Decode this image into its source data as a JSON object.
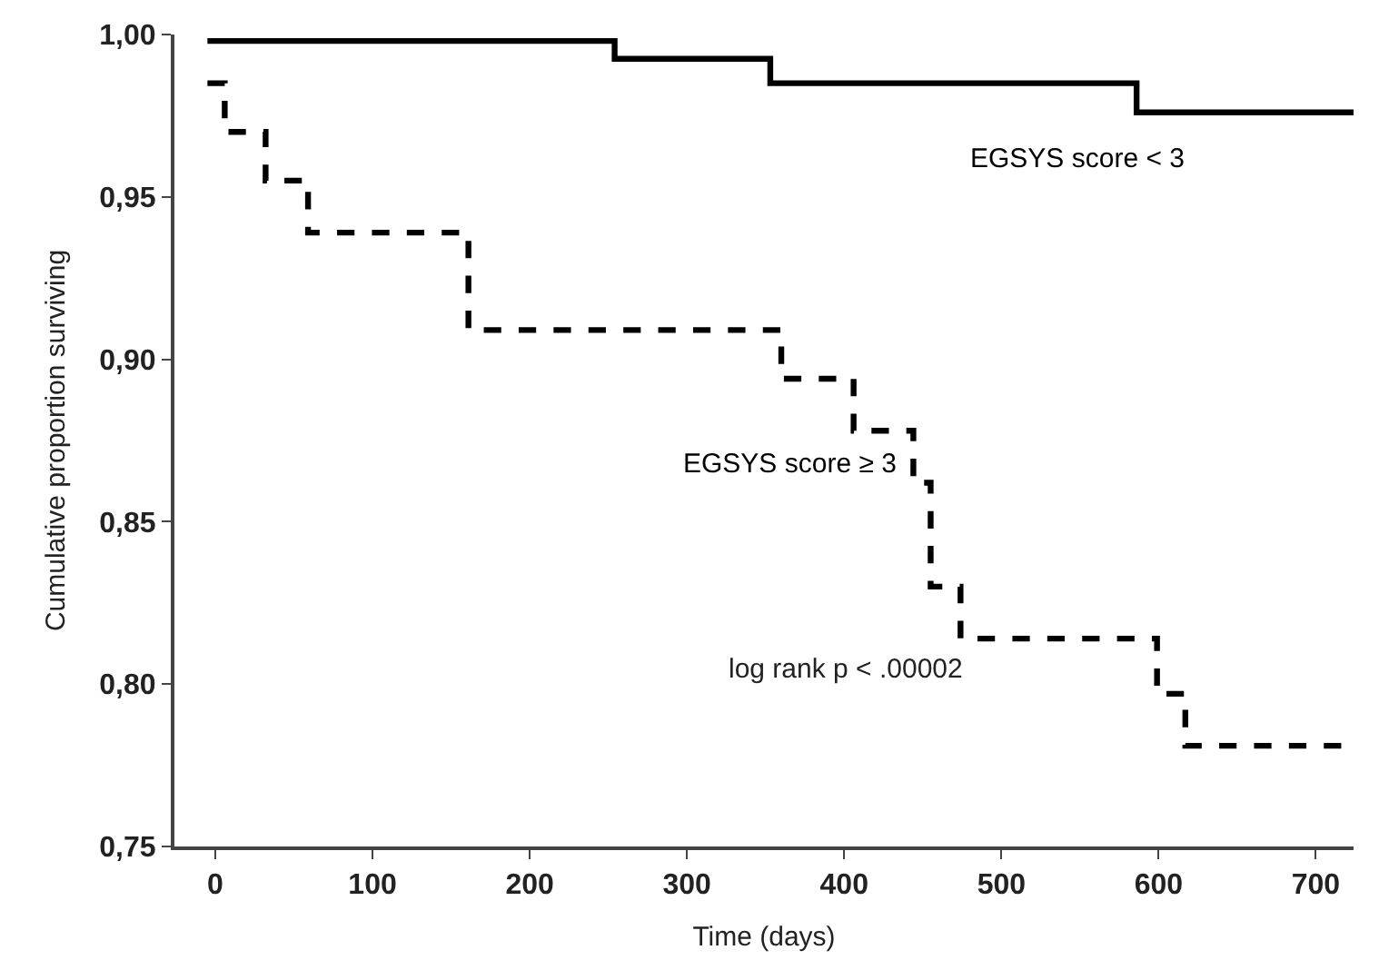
{
  "chart_data": {
    "type": "step",
    "xlabel": "Time (days)",
    "ylabel": "Cumulative proportion surviving",
    "series": [
      {
        "name": "EGSYS score < 3",
        "color": "#000000",
        "line_style": "solid",
        "x": [
          -5,
          254,
          353,
          586,
          724
        ],
        "values": [
          0.998,
          0.9925,
          0.985,
          0.976,
          0.976
        ]
      },
      {
        "name": "EGSYS score ≥ 3",
        "color": "#000000",
        "line_style": "dashed",
        "x": [
          -5,
          6,
          32,
          59,
          161,
          360,
          406,
          444,
          455,
          474,
          599,
          617,
          724
        ],
        "values": [
          0.985,
          0.97,
          0.955,
          0.939,
          0.909,
          0.894,
          0.878,
          0.862,
          0.83,
          0.814,
          0.797,
          0.781,
          0.781
        ]
      }
    ],
    "annotations": [
      "log rank p < .00002"
    ],
    "xlim": [
      -26,
      724
    ],
    "xticks": [
      0,
      100,
      200,
      300,
      400,
      500,
      600,
      700
    ],
    "ylim": [
      0.75,
      1.0
    ],
    "yticks": [
      {
        "value": 0.75,
        "label": "0,75"
      },
      {
        "value": 0.8,
        "label": "0,80"
      },
      {
        "value": 0.85,
        "label": "0,85"
      },
      {
        "value": 0.9,
        "label": "0,90"
      },
      {
        "value": 0.95,
        "label": "0,95"
      },
      {
        "value": 1.0,
        "label": "1,00"
      }
    ],
    "legend": false,
    "marker": "none"
  }
}
